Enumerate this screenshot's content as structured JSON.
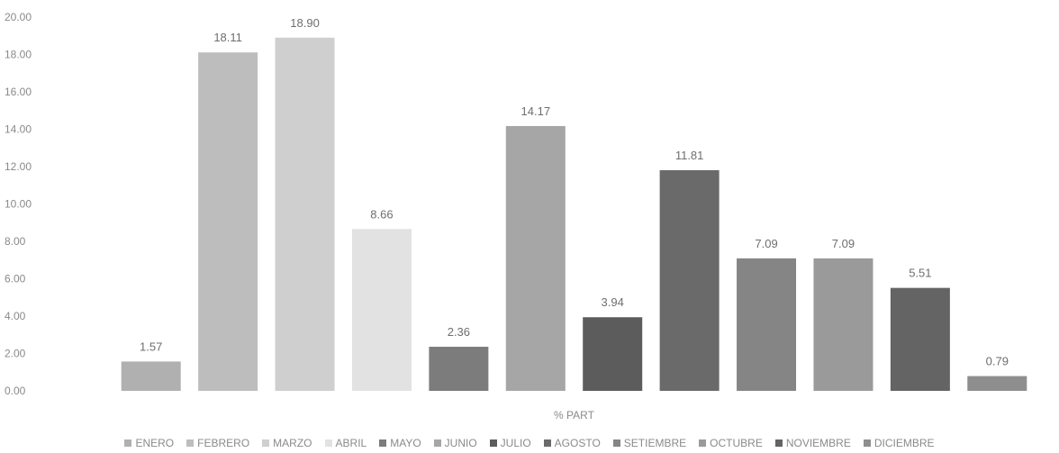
{
  "chart_data": {
    "type": "bar",
    "categories": [
      "% PART"
    ],
    "series": [
      {
        "name": "ENERO",
        "value": 1.57,
        "label": "1.57",
        "color": "#b0b0b0"
      },
      {
        "name": "FEBRERO",
        "value": 18.11,
        "label": "18.11",
        "color": "#bdbdbd"
      },
      {
        "name": "MARZO",
        "value": 18.9,
        "label": "18.90",
        "color": "#cfcfcf"
      },
      {
        "name": "ABRIL",
        "value": 8.66,
        "label": "8.66",
        "color": "#e2e2e2"
      },
      {
        "name": "MAYO",
        "value": 2.36,
        "label": "2.36",
        "color": "#7c7c7c"
      },
      {
        "name": "JUNIO",
        "value": 14.17,
        "label": "14.17",
        "color": "#a6a6a6"
      },
      {
        "name": "JULIO",
        "value": 3.94,
        "label": "3.94",
        "color": "#5c5c5c"
      },
      {
        "name": "AGOSTO",
        "value": 11.81,
        "label": "11.81",
        "color": "#6a6a6a"
      },
      {
        "name": "SETIEMBRE",
        "value": 7.09,
        "label": "7.09",
        "color": "#858585"
      },
      {
        "name": "OCTUBRE",
        "value": 7.09,
        "label": "7.09",
        "color": "#9a9a9a"
      },
      {
        "name": "NOVIEMBRE",
        "value": 5.51,
        "label": "5.51",
        "color": "#646464"
      },
      {
        "name": "DICIEMBRE",
        "value": 0.79,
        "label": "0.79",
        "color": "#8e8e8e"
      }
    ],
    "yticks": [
      "0.00",
      "2.00",
      "4.00",
      "6.00",
      "8.00",
      "10.00",
      "12.00",
      "14.00",
      "16.00",
      "18.00",
      "20.00"
    ],
    "ylim": [
      0,
      20
    ],
    "xlabel": "",
    "ylabel": "",
    "title": "",
    "grid": false,
    "legend_position": "bottom"
  }
}
